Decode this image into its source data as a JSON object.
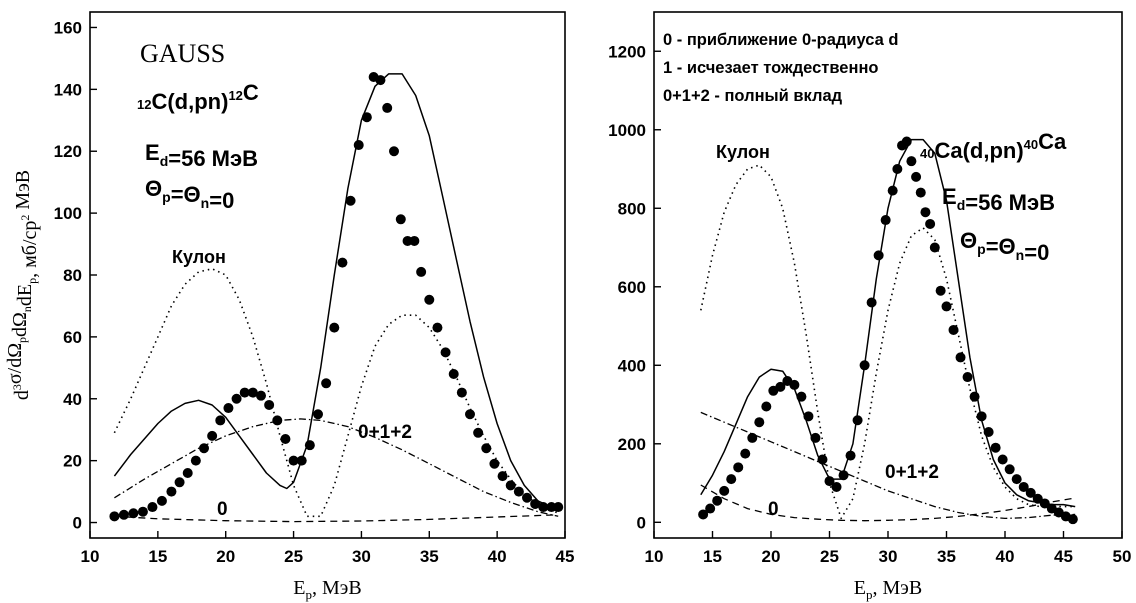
{
  "chart_data": [
    {
      "type": "line",
      "xlabel": "Ep, МэВ",
      "ylabel": "d3σ/dΩpdΩndEp, мб/ср2 МэВ",
      "xlim": [
        10,
        45
      ],
      "ylim": [
        -5,
        165
      ],
      "xticks": [
        10,
        15,
        20,
        25,
        30,
        35,
        40,
        45
      ],
      "yticks": [
        0,
        20,
        40,
        60,
        80,
        100,
        120,
        140,
        160
      ],
      "grid": false,
      "legend": "none",
      "annotations": {
        "gauss": "GAUSS",
        "reaction": "12C(d,pn)12C",
        "energy": "Ed=56 МэВ",
        "angle": "Θp=Θn=0",
        "kulon": "Кулон",
        "label_total": "0+1+2",
        "label_zero": "0"
      },
      "series": [
        {
          "style": "solid",
          "x": [
            11.8,
            13,
            14,
            15,
            16,
            17,
            18,
            19,
            20,
            21,
            22,
            23,
            24,
            24.5,
            25,
            26,
            27,
            28,
            29,
            30,
            31,
            32,
            33,
            34,
            35,
            36,
            37,
            38,
            39,
            40,
            41,
            42,
            43,
            44.5
          ],
          "y": [
            15,
            22,
            27,
            32,
            36,
            38.5,
            39.5,
            38,
            34,
            28,
            22,
            16,
            12,
            11,
            13,
            25,
            50,
            80,
            108,
            130,
            141,
            145,
            145,
            138,
            125,
            105,
            85,
            65,
            47,
            32,
            20,
            12,
            7,
            4
          ]
        },
        {
          "style": "dotted",
          "x": [
            11.8,
            13,
            14,
            15,
            16,
            17,
            18,
            19,
            20,
            21,
            22,
            23,
            24,
            25,
            26,
            27,
            28,
            29,
            30,
            31,
            32,
            33,
            34,
            35,
            36,
            37,
            38,
            39,
            40,
            41,
            42,
            43,
            44.5
          ],
          "y": [
            29,
            40,
            50,
            60,
            70,
            77,
            81,
            82,
            80,
            72,
            60,
            45,
            28,
            12,
            2,
            2,
            12,
            28,
            44,
            57,
            64,
            67,
            67,
            63,
            56,
            47,
            37,
            28,
            20,
            14,
            9,
            6,
            3
          ]
        },
        {
          "style": "dash-dot",
          "x": [
            11.8,
            14,
            16,
            18,
            20,
            22,
            24,
            25.5,
            27,
            29,
            31,
            33,
            35,
            37,
            39,
            41,
            43,
            44.5
          ],
          "y": [
            8,
            14,
            19,
            24,
            28,
            31,
            33,
            33.5,
            33,
            31,
            27.5,
            23.5,
            19,
            14.5,
            10,
            6.5,
            3.5,
            2
          ]
        },
        {
          "style": "dashed",
          "x": [
            11.8,
            15,
            20,
            25,
            30,
            35,
            40,
            44.5
          ],
          "y": [
            2,
            1.2,
            0.6,
            0.3,
            0.5,
            1,
            1.8,
            2.5
          ]
        },
        {
          "style": "markers",
          "x": [
            11.8,
            12.5,
            13.2,
            13.9,
            14.6,
            15.3,
            16,
            16.6,
            17.2,
            17.8,
            18.4,
            19,
            19.6,
            20.2,
            20.8,
            21.4,
            22,
            22.6,
            23.2,
            23.8,
            24.4,
            25,
            25.6,
            26.2,
            26.8,
            27.4,
            28,
            28.6,
            29.2,
            29.8,
            30.4,
            30.9,
            31.4,
            31.9,
            32.4,
            32.9,
            33.4,
            33.9,
            34.4,
            35,
            35.6,
            36.2,
            36.8,
            37.4,
            38,
            38.6,
            39.2,
            39.8,
            40.4,
            41,
            41.6,
            42.2,
            42.8,
            43.4,
            44,
            44.5
          ],
          "y": [
            2,
            2.5,
            3,
            3.5,
            5,
            7,
            10,
            13,
            16,
            20,
            24,
            28,
            33,
            37,
            40,
            42,
            42,
            41,
            38,
            33,
            27,
            20,
            20,
            25,
            35,
            45,
            63,
            84,
            104,
            122,
            131,
            144,
            143,
            134,
            120,
            98,
            91,
            91,
            81,
            72,
            63,
            55,
            48,
            42,
            35,
            29,
            24,
            19,
            15,
            12,
            10,
            8,
            6,
            5,
            5,
            5
          ]
        }
      ]
    },
    {
      "type": "line",
      "xlabel": "Ep, МэВ",
      "ylabel": "",
      "xlim": [
        10,
        50
      ],
      "ylim": [
        -40,
        1300
      ],
      "xticks": [
        10,
        15,
        20,
        25,
        30,
        35,
        40,
        45,
        50
      ],
      "yticks": [
        0,
        200,
        400,
        600,
        800,
        1000,
        1200
      ],
      "grid": false,
      "legend": "top-left",
      "legend_entries": [
        "0 - приближение 0-радиуса d",
        "1 - исчезает тождественно",
        "0+1+2 - полный вклад"
      ],
      "annotations": {
        "reaction": "40Ca(d,pn)40Ca",
        "energy": "Ed=56 МэВ",
        "angle": "Θp=Θn=0",
        "kulon": "Кулон",
        "label_total": "0+1+2",
        "label_zero": "0"
      },
      "series": [
        {
          "style": "solid",
          "x": [
            14,
            15,
            16,
            17,
            18,
            19,
            20,
            21,
            22,
            23,
            24,
            25,
            26,
            27,
            28,
            29,
            30,
            31,
            32,
            33,
            34,
            35,
            36,
            37,
            38,
            39,
            40,
            41,
            42,
            43,
            44,
            45,
            46
          ],
          "y": [
            70,
            120,
            180,
            250,
            320,
            370,
            390,
            385,
            340,
            260,
            170,
            110,
            110,
            200,
            400,
            620,
            800,
            920,
            975,
            975,
            940,
            820,
            620,
            420,
            260,
            160,
            100,
            70,
            55,
            50,
            45,
            45,
            40
          ]
        },
        {
          "style": "dotted",
          "x": [
            14,
            15,
            16,
            17,
            18,
            19,
            20,
            21,
            22,
            23,
            24,
            25,
            26,
            27,
            28,
            29,
            30,
            31,
            32,
            33,
            34,
            35,
            36,
            37,
            38,
            39,
            40,
            41,
            42,
            43,
            44,
            45,
            46
          ],
          "y": [
            540,
            680,
            790,
            860,
            900,
            910,
            880,
            800,
            660,
            480,
            280,
            100,
            10,
            60,
            200,
            380,
            540,
            660,
            730,
            750,
            720,
            620,
            480,
            340,
            220,
            140,
            90,
            60,
            45,
            40,
            40,
            40,
            40
          ]
        },
        {
          "style": "dash-dot",
          "x": [
            14,
            16,
            18,
            20,
            22,
            24,
            26,
            28,
            30,
            32,
            34,
            36,
            38,
            40,
            42,
            44,
            46
          ],
          "y": [
            280,
            255,
            230,
            205,
            180,
            155,
            130,
            105,
            80,
            60,
            40,
            25,
            15,
            10,
            12,
            18,
            20
          ]
        },
        {
          "style": "dashed",
          "x": [
            14,
            16,
            18,
            20,
            22,
            24,
            26,
            28,
            30,
            32,
            34,
            36,
            38,
            40,
            42,
            44,
            46
          ],
          "y": [
            95,
            60,
            35,
            20,
            12,
            8,
            5,
            4,
            5,
            7,
            10,
            15,
            22,
            30,
            40,
            52,
            62
          ]
        },
        {
          "style": "markers",
          "x": [
            14.2,
            14.8,
            15.4,
            16,
            16.6,
            17.2,
            17.8,
            18.4,
            19,
            19.6,
            20.2,
            20.8,
            21.4,
            22,
            22.6,
            23.2,
            23.8,
            24.4,
            25,
            25.6,
            26.2,
            26.8,
            27.4,
            28,
            28.6,
            29.2,
            29.8,
            30.4,
            30.8,
            31.2,
            31.6,
            32,
            32.4,
            32.8,
            33.2,
            33.6,
            34,
            34.5,
            35,
            35.6,
            36.2,
            36.8,
            37.4,
            38,
            38.6,
            39.2,
            39.8,
            40.4,
            41,
            41.6,
            42.2,
            42.8,
            43.4,
            44,
            44.6,
            45.2,
            45.8
          ],
          "y": [
            20,
            35,
            55,
            80,
            110,
            140,
            175,
            215,
            255,
            295,
            335,
            345,
            360,
            350,
            320,
            270,
            215,
            160,
            105,
            90,
            120,
            170,
            260,
            400,
            560,
            680,
            770,
            845,
            900,
            960,
            970,
            920,
            880,
            840,
            790,
            760,
            700,
            590,
            550,
            490,
            420,
            370,
            320,
            270,
            230,
            190,
            160,
            135,
            110,
            90,
            75,
            60,
            48,
            35,
            25,
            15,
            8
          ]
        }
      ]
    }
  ]
}
